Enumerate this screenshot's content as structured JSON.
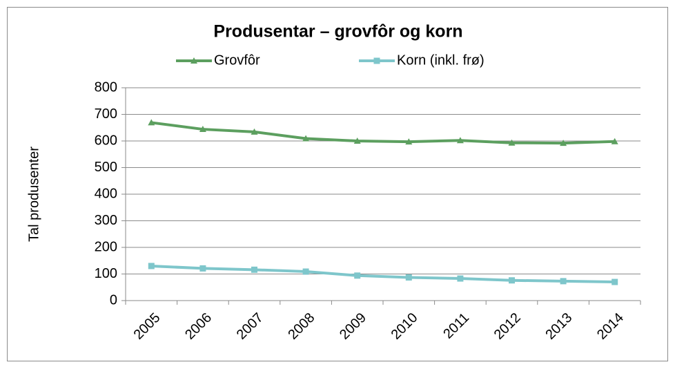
{
  "chart_data": {
    "type": "line",
    "title": "Produsentar – grovfôr og korn",
    "y_label": "Tal produsenter",
    "categories": [
      "2005",
      "2006",
      "2007",
      "2008",
      "2009",
      "2010",
      "2011",
      "2012",
      "2013",
      "2014"
    ],
    "series": [
      {
        "name": "Grovfôr",
        "color": "#5c9f5f",
        "marker": "triangle",
        "values": [
          669,
          644,
          634,
          609,
          600,
          597,
          602,
          593,
          592,
          598
        ]
      },
      {
        "name": "Korn (inkl. frø)",
        "color": "#7ec6cb",
        "marker": "square",
        "values": [
          130,
          121,
          116,
          109,
          94,
          87,
          83,
          76,
          73,
          70
        ]
      }
    ],
    "ylim": [
      0,
      800
    ],
    "yticks": [
      0,
      100,
      200,
      300,
      400,
      500,
      600,
      700,
      800
    ],
    "grid": true,
    "legend": "top"
  }
}
